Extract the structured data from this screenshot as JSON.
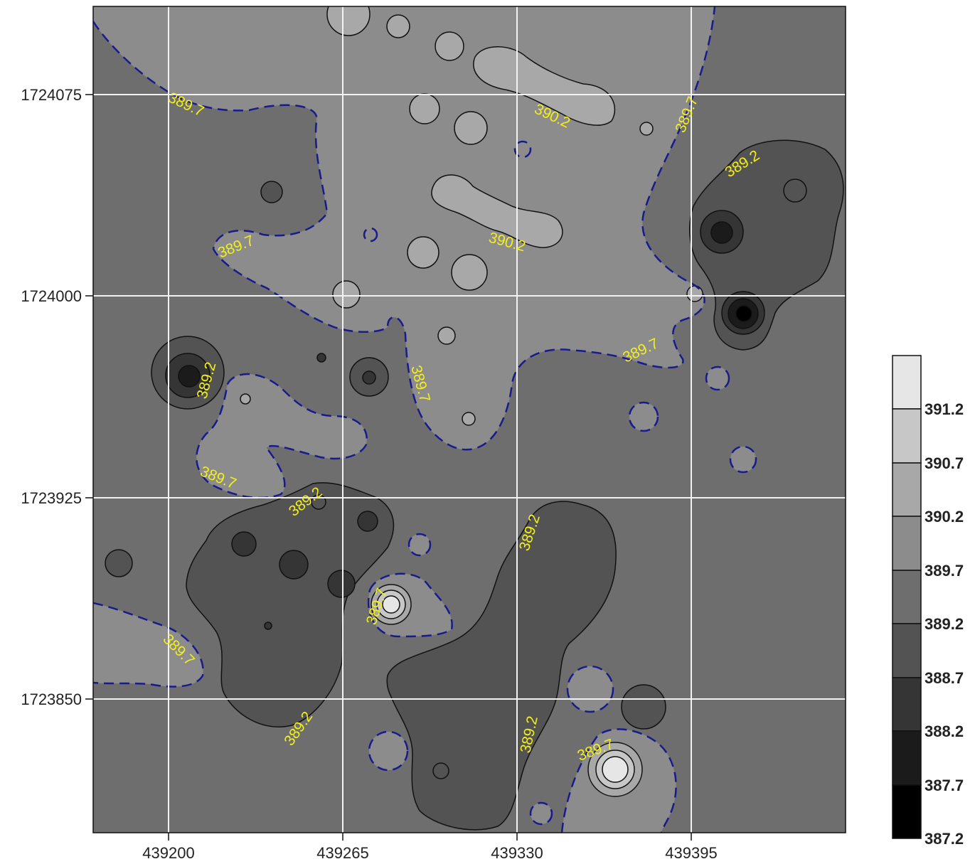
{
  "chart_data": {
    "type": "contour",
    "xlabel": "",
    "ylabel": "",
    "x_ticks": [
      "439200",
      "439265",
      "439330",
      "439395"
    ],
    "y_ticks": [
      "1724075",
      "1724000",
      "1723925",
      "1723850"
    ],
    "xlim": [
      439172,
      439452
    ],
    "ylim": [
      1723800,
      1724108
    ],
    "grid": true,
    "legend": {
      "position": "right",
      "levels": [
        "387.2",
        "387.7",
        "388.2",
        "388.7",
        "389.2",
        "389.7",
        "390.2",
        "390.7",
        "391.2"
      ],
      "colors": [
        "#000000",
        "#1b1b1b",
        "#353535",
        "#535353",
        "#6e6e6e",
        "#8c8c8c",
        "#a8a8a8",
        "#c7c7c7",
        "#e6e6e6"
      ]
    },
    "contour_labels": [
      {
        "text": "389.7",
        "x": 439208,
        "y": 1724073
      },
      {
        "text": "390.2",
        "x": 439320,
        "y": 1724068
      },
      {
        "text": "389.7",
        "x": 439388,
        "y": 1724068
      },
      {
        "text": "389.2",
        "x": 439421,
        "y": 1724051
      },
      {
        "text": "389.7",
        "x": 439229,
        "y": 1724018
      },
      {
        "text": "390.2",
        "x": 439303,
        "y": 1724020
      },
      {
        "text": "389.7",
        "x": 439375,
        "y": 1723976
      },
      {
        "text": "389.2",
        "x": 439200,
        "y": 1723960
      },
      {
        "text": "389.7",
        "x": 439291,
        "y": 1723957
      },
      {
        "text": "389.7",
        "x": 439220,
        "y": 1723932
      },
      {
        "text": "389.2",
        "x": 439252,
        "y": 1723923
      },
      {
        "text": "389.2",
        "x": 439337,
        "y": 1723912
      },
      {
        "text": "389.7",
        "x": 439279,
        "y": 1723881
      },
      {
        "text": "389.7",
        "x": 439178,
        "y": 1723867
      },
      {
        "text": "389.2",
        "x": 439251,
        "y": 1723842
      },
      {
        "text": "389.2",
        "x": 439336,
        "y": 1723842
      },
      {
        "text": "389.7",
        "x": 439364,
        "y": 1723833
      }
    ]
  },
  "colors": {
    "contour_dashed": "#1a1a8c",
    "contour_label": "#f2ef1a",
    "gridline": "#f2f2f2"
  }
}
